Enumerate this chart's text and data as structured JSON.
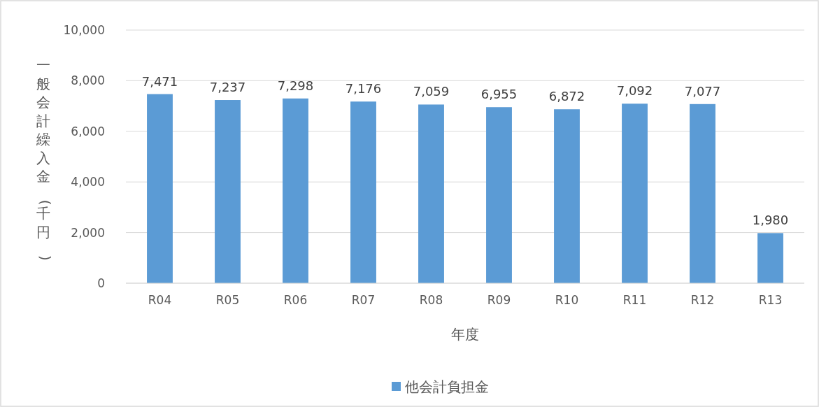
{
  "chart_data": {
    "type": "bar",
    "xlabel": "年度",
    "ylabel": "一般会計繰入金(千円)",
    "categories": [
      "R04",
      "R05",
      "R06",
      "R07",
      "R08",
      "R09",
      "R10",
      "R11",
      "R12",
      "R13"
    ],
    "series": [
      {
        "name": "他会計負担金",
        "color": "#5b9bd5",
        "values": [
          7471,
          7237,
          7298,
          7176,
          7059,
          6955,
          6872,
          7092,
          7077,
          1980
        ],
        "value_labels": [
          "7,471",
          "7,237",
          "7,298",
          "7,176",
          "7,059",
          "6,955",
          "6,872",
          "7,092",
          "7,077",
          "1,980"
        ]
      }
    ],
    "ylim": [
      0,
      10000
    ],
    "yticks": [
      0,
      {
        "value": 2000,
        "label": "2,000"
      },
      {
        "value": 4000,
        "label": "4,000"
      },
      {
        "value": 6000,
        "label": "6,000"
      },
      {
        "value": 8000,
        "label": "8,000"
      },
      {
        "value": 10000,
        "label": "10,000"
      }
    ],
    "grid": "y",
    "legend": "bottom"
  }
}
